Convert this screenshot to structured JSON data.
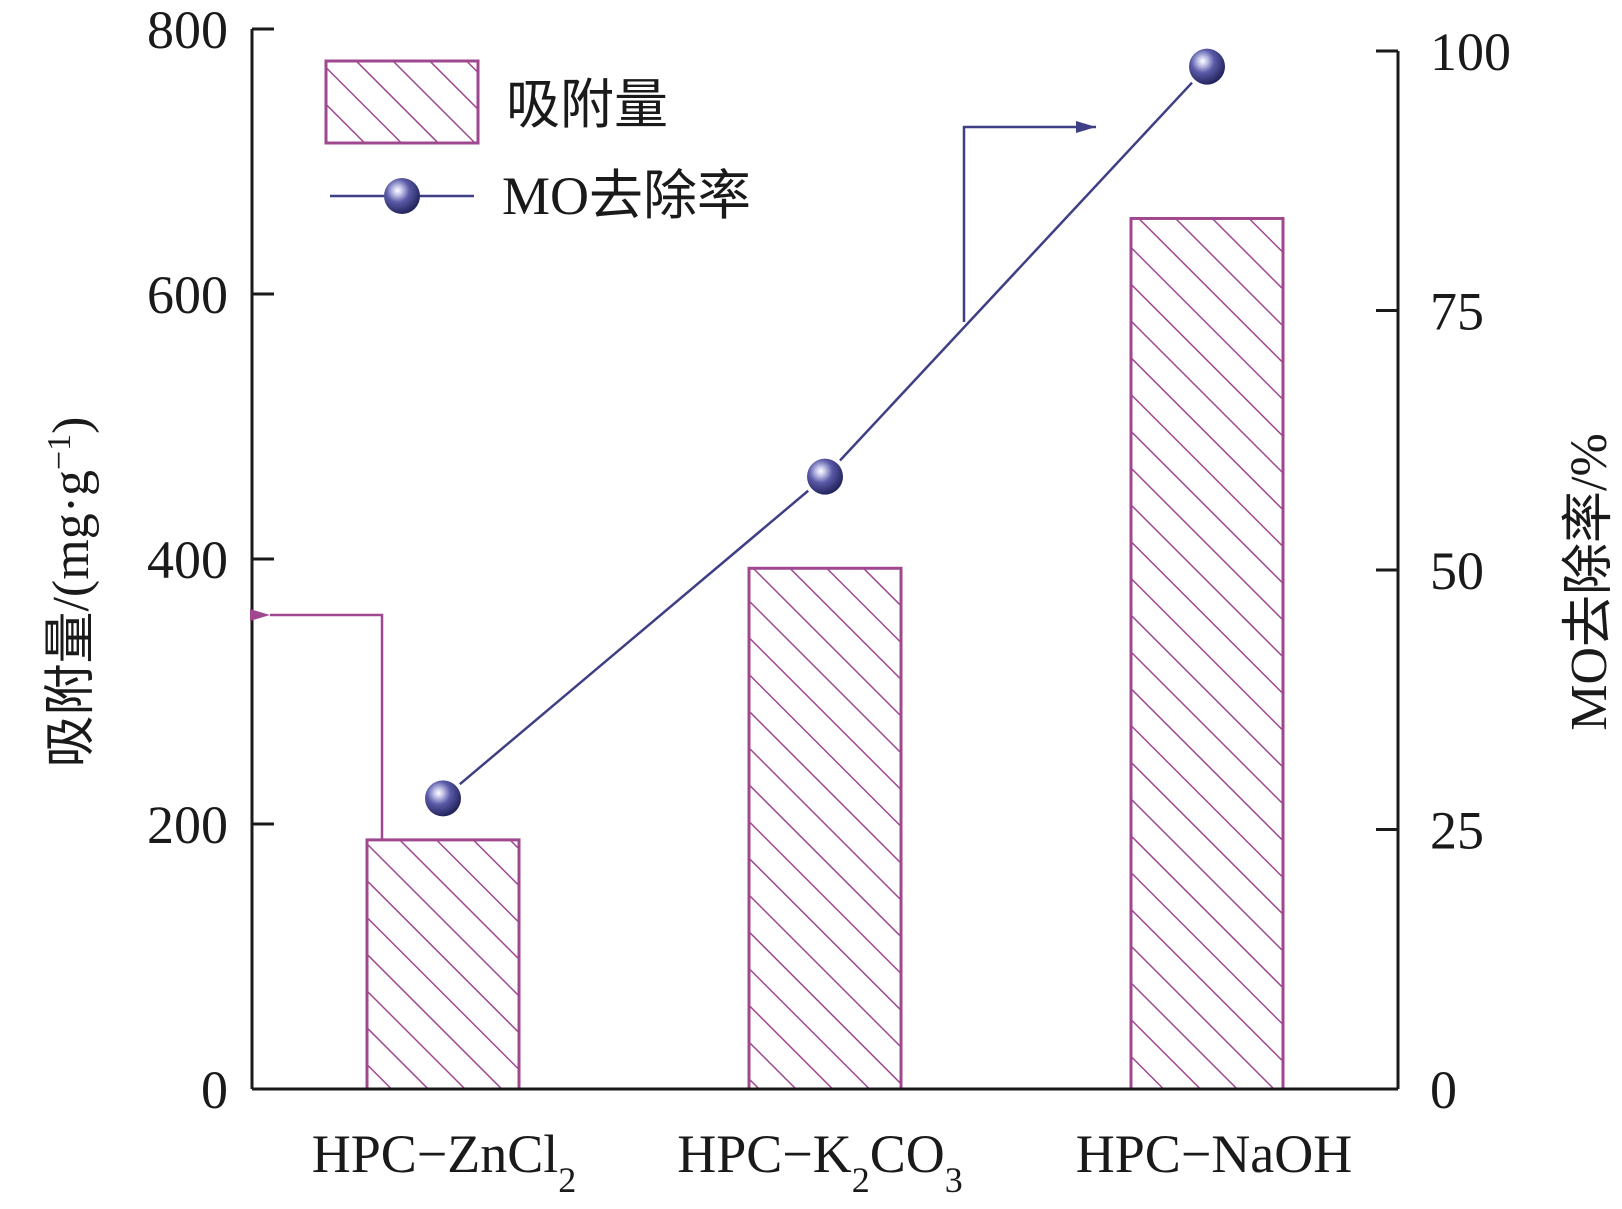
{
  "chart_data": {
    "type": "bar",
    "categories": [
      {
        "main": "HPC−ZnCl",
        "sub": "2",
        "rest": ""
      },
      {
        "main": "HPC−K",
        "sub": "2",
        "rest": "CO",
        "sub2": "3"
      },
      {
        "main": "HPC−NaOH",
        "sub": "",
        "rest": ""
      }
    ],
    "series": [
      {
        "name": "吸附量",
        "axis": "left",
        "kind": "bar",
        "values": [
          188,
          393,
          657
        ]
      },
      {
        "name": "MO去除率",
        "axis": "right",
        "kind": "line",
        "values": [
          28,
          59,
          98.5
        ]
      }
    ],
    "ylabel_left": {
      "main": "吸附量/(mg·g",
      "sup": "−1",
      "close": ")"
    },
    "ylabel_right": "MO去除率/%",
    "ylim_left": [
      0,
      800
    ],
    "ylim_right": [
      0,
      100
    ],
    "yticks_left": [
      0,
      200,
      400,
      600,
      800
    ],
    "yticks_right": [
      0,
      25,
      50,
      75,
      100
    ],
    "legend": [
      "吸附量",
      "MO去除率"
    ],
    "legend_position": "top-left",
    "grid": false,
    "colors": {
      "bar": "#a0488f",
      "line": "#3f3f86",
      "marker": "#4a4a96",
      "left_arrow": "#a0488f",
      "right_arrow": "#3f3f86"
    }
  }
}
